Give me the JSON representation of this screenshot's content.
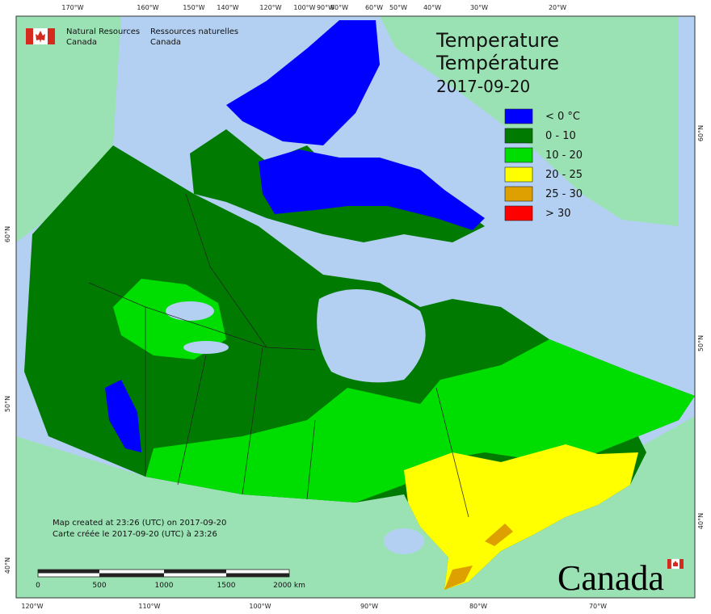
{
  "header": {
    "department_en": [
      "Natural Resources",
      "Canada"
    ],
    "department_fr": [
      "Ressources naturelles",
      "Canada"
    ]
  },
  "title": [
    "Temperature",
    "Température",
    "2017-09-20"
  ],
  "legend": [
    {
      "label": "< 0 °C",
      "color": "#0000ff"
    },
    {
      "label": "0 - 10",
      "color": "#007a00"
    },
    {
      "label": "10 - 20",
      "color": "#00dd00"
    },
    {
      "label": "20 - 25",
      "color": "#ffff00"
    },
    {
      "label": "25 - 30",
      "color": "#dda000"
    },
    {
      "label": "> 30",
      "color": "#ff0000"
    }
  ],
  "notes": [
    "Map created at 23:26 (UTC) on 2017-09-20",
    "Carte créée le 2017-09-20 (UTC) à 23:26"
  ],
  "scale_bar": {
    "labels": [
      "0",
      "500",
      "1000",
      "1500",
      "2000 km"
    ]
  },
  "graticule": {
    "top": [
      "170°W",
      "160°W",
      "150°W",
      "140°W",
      "120°W",
      "100°W",
      "90°W",
      "80°W",
      "60°W",
      "50°W",
      "40°W",
      "30°W",
      "20°W"
    ],
    "bottom": [
      "120°W",
      "110°W",
      "100°W",
      "90°W",
      "80°W",
      "70°W"
    ],
    "left": [
      "60°N",
      "50°N",
      "40°N"
    ],
    "right": [
      "60°N",
      "50°N",
      "40°N"
    ]
  },
  "wordmark": "Canada"
}
